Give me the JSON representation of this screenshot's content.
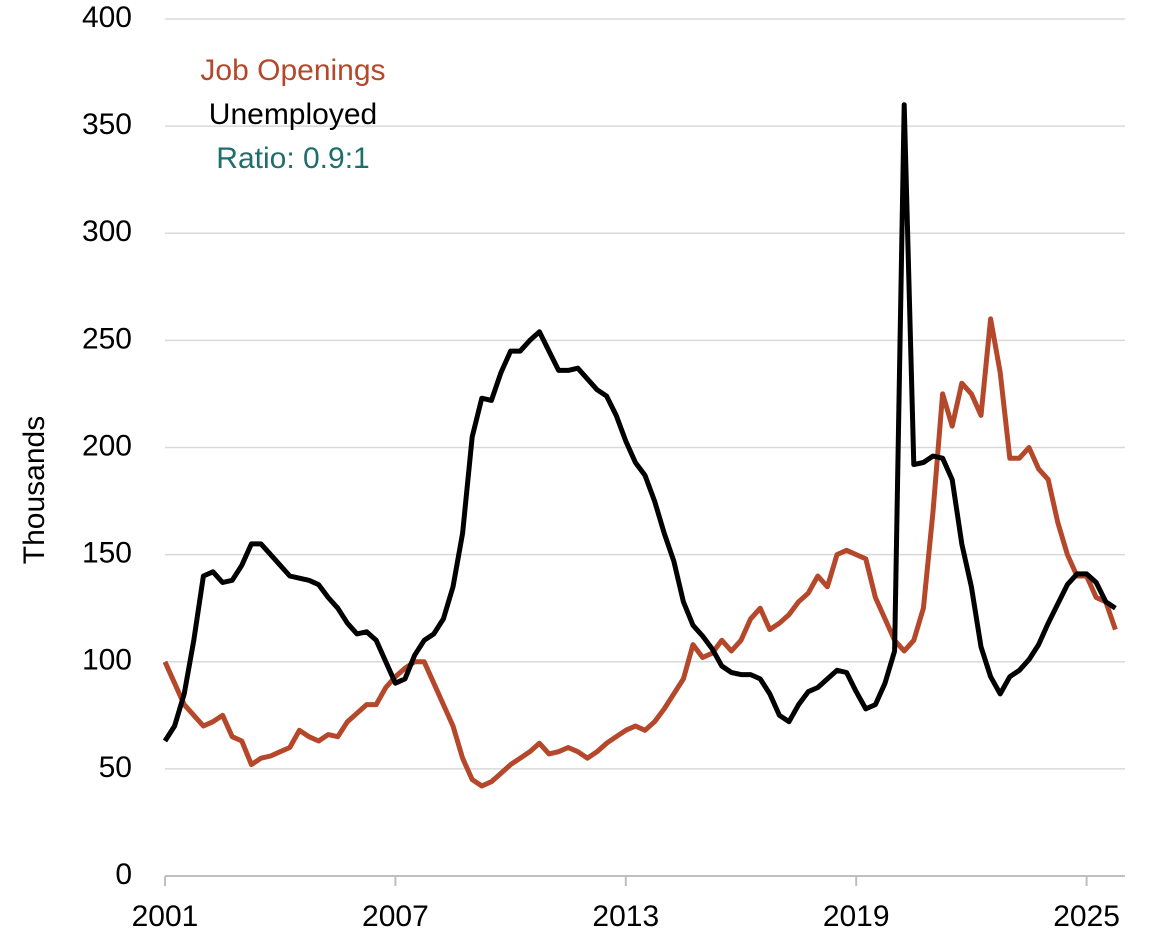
{
  "chart_data": {
    "type": "line",
    "y_label": "Thousands",
    "annotation": "Ratio: 0.9:1",
    "annotation_color": "#1f6e6e",
    "x": [
      2001,
      2001.25,
      2001.5,
      2001.75,
      2002,
      2002.25,
      2002.5,
      2002.75,
      2003,
      2003.25,
      2003.5,
      2003.75,
      2004,
      2004.25,
      2004.5,
      2004.75,
      2005,
      2005.25,
      2005.5,
      2005.75,
      2006,
      2006.25,
      2006.5,
      2006.75,
      2007,
      2007.25,
      2007.5,
      2007.75,
      2008,
      2008.25,
      2008.5,
      2008.75,
      2009,
      2009.25,
      2009.5,
      2009.75,
      2010,
      2010.25,
      2010.5,
      2010.75,
      2011,
      2011.25,
      2011.5,
      2011.75,
      2012,
      2012.25,
      2012.5,
      2012.75,
      2013,
      2013.25,
      2013.5,
      2013.75,
      2014,
      2014.25,
      2014.5,
      2014.75,
      2015,
      2015.25,
      2015.5,
      2015.75,
      2016,
      2016.25,
      2016.5,
      2016.75,
      2017,
      2017.25,
      2017.5,
      2017.75,
      2018,
      2018.25,
      2018.5,
      2018.75,
      2019,
      2019.25,
      2019.5,
      2019.75,
      2020,
      2020.25,
      2020.5,
      2020.75,
      2021,
      2021.25,
      2021.5,
      2021.75,
      2022,
      2022.25,
      2022.5,
      2022.75,
      2023,
      2023.25,
      2023.5,
      2023.75,
      2024,
      2024.25,
      2024.5,
      2024.75,
      2025,
      2025.25,
      2025.5,
      2025.75
    ],
    "series": [
      {
        "name": "Job Openings",
        "color": "#b5472a",
        "values": [
          100,
          90,
          80,
          75,
          70,
          72,
          75,
          65,
          63,
          52,
          55,
          56,
          58,
          60,
          68,
          65,
          63,
          66,
          65,
          72,
          76,
          80,
          80,
          88,
          93,
          97,
          100,
          100,
          90,
          80,
          70,
          55,
          45,
          42,
          44,
          48,
          52,
          55,
          58,
          62,
          57,
          58,
          60,
          58,
          55,
          58,
          62,
          65,
          68,
          70,
          68,
          72,
          78,
          85,
          92,
          108,
          102,
          104,
          110,
          105,
          110,
          120,
          125,
          115,
          118,
          122,
          128,
          132,
          140,
          135,
          150,
          152,
          150,
          148,
          130,
          120,
          110,
          105,
          110,
          125,
          170,
          225,
          210,
          230,
          225,
          215,
          260,
          235,
          195,
          195,
          200,
          190,
          185,
          165,
          150,
          140,
          140,
          130,
          128,
          115
        ]
      },
      {
        "name": "Unemployed",
        "color": "#000000",
        "values": [
          63,
          70,
          85,
          110,
          140,
          142,
          137,
          138,
          145,
          155,
          155,
          150,
          145,
          140,
          139,
          138,
          136,
          130,
          125,
          118,
          113,
          114,
          110,
          100,
          90,
          92,
          103,
          110,
          113,
          120,
          135,
          160,
          205,
          223,
          222,
          235,
          245,
          245,
          250,
          254,
          245,
          236,
          236,
          237,
          232,
          227,
          224,
          215,
          203,
          193,
          187,
          175,
          160,
          147,
          128,
          117,
          112,
          106,
          98,
          95,
          94,
          94,
          92,
          85,
          75,
          72,
          80,
          86,
          88,
          92,
          96,
          95,
          86,
          78,
          80,
          90,
          105,
          360,
          192,
          193,
          196,
          195,
          185,
          155,
          135,
          107,
          93,
          85,
          93,
          96,
          101,
          108,
          118,
          127,
          136,
          141,
          141,
          137,
          128,
          125
        ]
      }
    ],
    "xlim": [
      2001,
      2026
    ],
    "xticks": [
      2001,
      2007,
      2013,
      2019,
      2025
    ],
    "ylim": [
      0,
      400
    ],
    "yticks": [
      0,
      50,
      100,
      150,
      200,
      250,
      300,
      350,
      400
    ],
    "grid": true
  }
}
